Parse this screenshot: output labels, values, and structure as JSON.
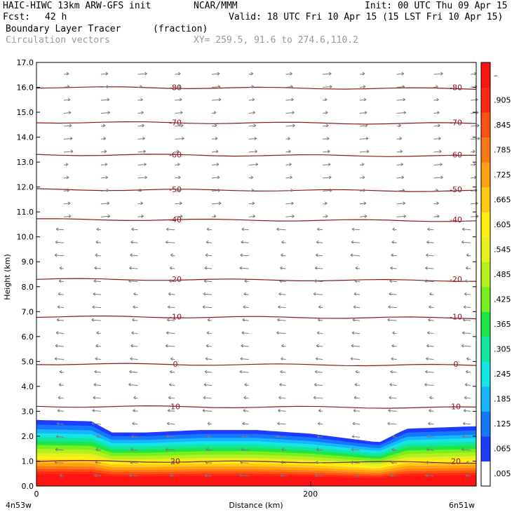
{
  "header": {
    "model": "HAIC-HIWC 13km ARW-GFS init",
    "org": "NCAR/MMM",
    "init": "Init: 00 UTC Thu 09 Apr 15",
    "fcst_label": "Fcst:",
    "fcst_value": "42 h",
    "valid": "Valid: 18 UTC Fri 10 Apr 15 (15 LST Fri 10 Apr 15)",
    "field": "Boundary Layer Tracer",
    "units": "(fraction)",
    "overlay": "Circulation vectors",
    "xy": "XY= 259.5, 91.6 to 274.6,110.2"
  },
  "colors": {
    "contour": "#8b1a1a",
    "vector": "#7a7a7a",
    "frame": "#000000"
  },
  "chart_data": {
    "type": "heatmap",
    "title": "Boundary Layer Tracer",
    "ylabel": "Height (km)",
    "xlabel": "Distance (km)",
    "ylim": [
      0,
      17
    ],
    "xlim": [
      0,
      321
    ],
    "y_ticks": [
      "0.0",
      "1.0",
      "2.0",
      "3.0",
      "4.0",
      "5.0",
      "6.0",
      "7.0",
      "8.0",
      "9.0",
      "10.0",
      "11.0",
      "12.0",
      "13.0",
      "14.0",
      "15.0",
      "16.0",
      "17.0"
    ],
    "x_ticks": [
      {
        "value": 0,
        "label": "0"
      },
      {
        "value": 200,
        "label": "200"
      }
    ],
    "x_end_labels": {
      "left": "4n53w",
      "right": "6n51w"
    },
    "colorbar_labels": [
      ".005",
      ".065",
      ".125",
      ".185",
      ".245",
      ".305",
      ".365",
      ".425",
      ".485",
      ".545",
      ".605",
      ".665",
      ".725",
      ".785",
      ".845",
      ".905",
      "–"
    ],
    "colorbar_colors": [
      "#ffffff",
      "#1e3cff",
      "#1478ff",
      "#17b4ff",
      "#14e6e6",
      "#14e6a0",
      "#1ee646",
      "#78f01e",
      "#b4f01e",
      "#e6f01e",
      "#fff014",
      "#ffc814",
      "#ffa014",
      "#ff7814",
      "#ff5014",
      "#ff2814",
      "#ff1414"
    ],
    "tracer_top_km": [
      {
        "x": 0,
        "y": 2.65
      },
      {
        "x": 40,
        "y": 2.6
      },
      {
        "x": 55,
        "y": 2.15
      },
      {
        "x": 80,
        "y": 2.15
      },
      {
        "x": 120,
        "y": 2.25
      },
      {
        "x": 160,
        "y": 2.25
      },
      {
        "x": 200,
        "y": 2.1
      },
      {
        "x": 250,
        "y": 1.75
      },
      {
        "x": 270,
        "y": 2.3
      },
      {
        "x": 321,
        "y": 2.4
      }
    ],
    "temperature_contours": [
      {
        "label": "10",
        "height_km": 3.2
      },
      {
        "label": "0",
        "height_km": 4.9
      },
      {
        "label": "-10",
        "height_km": 6.8
      },
      {
        "label": "-20",
        "height_km": 8.3
      },
      {
        "label": "-40",
        "height_km": 10.7
      },
      {
        "label": "-50",
        "height_km": 11.9
      },
      {
        "label": "-60",
        "height_km": 13.3
      },
      {
        "label": "-70",
        "height_km": 14.6
      },
      {
        "label": "-80",
        "height_km": 16.0
      },
      {
        "label": "20",
        "height_km": 1.0
      }
    ]
  }
}
